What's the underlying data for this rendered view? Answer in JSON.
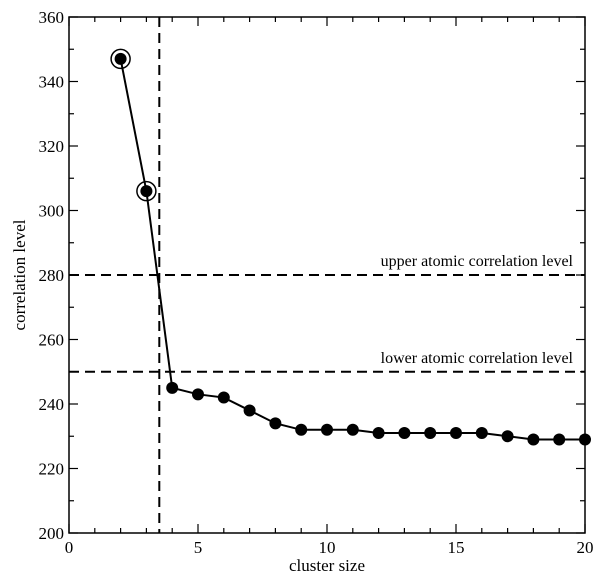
{
  "chart_data": {
    "type": "line",
    "xlabel": "cluster size",
    "ylabel": "correlation level",
    "xlim": [
      0,
      20
    ],
    "ylim": [
      200,
      360
    ],
    "xticks": [
      0,
      5,
      10,
      15,
      20
    ],
    "yticks": [
      200,
      220,
      240,
      260,
      280,
      300,
      320,
      340,
      360
    ],
    "grid": false,
    "legend": "none",
    "series": [
      {
        "x": [
          2,
          3,
          4,
          5,
          6,
          7,
          8,
          9,
          10,
          11,
          12,
          13,
          14,
          15,
          16,
          17,
          18,
          19,
          20
        ],
        "y": [
          347,
          306,
          245,
          243,
          242,
          238,
          234,
          232,
          232,
          232,
          231,
          231,
          231,
          231,
          231,
          230,
          229,
          229,
          229
        ]
      }
    ],
    "highlighted_points": [
      {
        "x": 2,
        "y": 347
      },
      {
        "x": 3,
        "y": 306
      }
    ],
    "reference_lines": [
      {
        "orientation": "horizontal",
        "value": 280,
        "label": "upper atomic correlation level",
        "style": "dashed"
      },
      {
        "orientation": "horizontal",
        "value": 250,
        "label": "lower atomic correlation level",
        "style": "dashed"
      },
      {
        "orientation": "vertical",
        "value": 3.5,
        "label": "",
        "style": "dashed"
      }
    ]
  }
}
